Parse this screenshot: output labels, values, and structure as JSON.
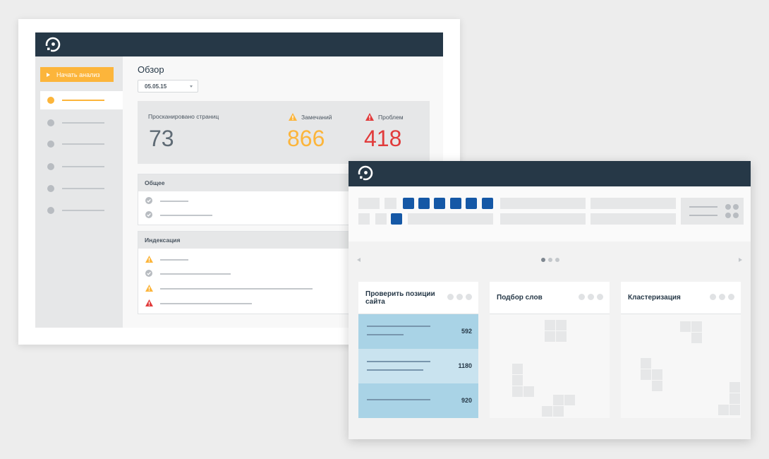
{
  "overview": {
    "start_button": "Начать анализ",
    "title": "Обзор",
    "date": "05.05.15",
    "stats": {
      "pages_label": "Просканировано страниц",
      "pages_value": "73",
      "warnings_label": "Замечаний",
      "warnings_value": "866",
      "problems_label": "Проблем",
      "problems_value": "418"
    },
    "panels": {
      "general": "Общее",
      "indexing": "Индексация"
    }
  },
  "tools": {
    "cards": [
      {
        "title": "Проверить позиции сайта",
        "rows": [
          {
            "value": "592"
          },
          {
            "value": "1180"
          },
          {
            "value": "920"
          }
        ]
      },
      {
        "title": "Подбор слов"
      },
      {
        "title": "Кластеризация"
      }
    ]
  },
  "colors": {
    "header": "#263847",
    "accent": "#fcb53b",
    "danger": "#e13b3b",
    "primary": "#1558a6",
    "row_highlight": "#a9d3e6",
    "row_light": "#c9e3ef"
  }
}
